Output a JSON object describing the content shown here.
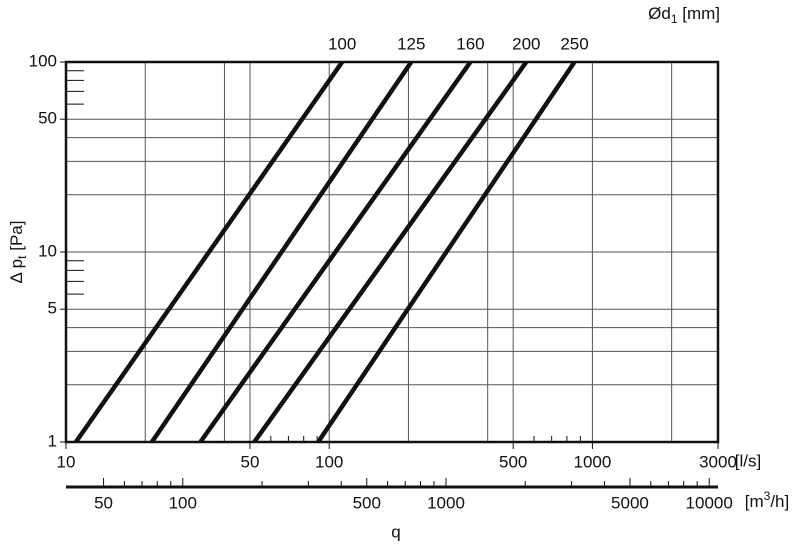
{
  "chart_data": {
    "type": "line",
    "log_x": true,
    "log_y": true,
    "top_label": {
      "pre": "Ød",
      "sub": "1",
      "post": " [mm]"
    },
    "y_label": {
      "pre": "Δ p",
      "sub": "t",
      "post": " [Pa]"
    },
    "x_label": "q",
    "x_unit": "[l/s]",
    "x2_unit": {
      "pre": "[m",
      "sup": "3",
      "post": "/h]"
    },
    "xlim": [
      10,
      3000
    ],
    "xticks": [
      10,
      50,
      100,
      500,
      1000,
      3000
    ],
    "xgrid": [
      20,
      40,
      50,
      100,
      200,
      400,
      500,
      1000,
      2000
    ],
    "xminor": [
      60,
      70,
      80,
      90,
      600,
      700,
      800,
      900
    ],
    "ylim": [
      1,
      100
    ],
    "yticks": [
      1,
      5,
      10,
      50,
      100
    ],
    "ygrid": [
      2,
      3,
      4,
      5,
      10,
      20,
      30,
      40,
      50
    ],
    "yminor": [
      6,
      7,
      8,
      9,
      60,
      70,
      80,
      90
    ],
    "x2lim": [
      36,
      10800
    ],
    "x2ticks": [
      50,
      100,
      500,
      1000,
      5000,
      10000
    ],
    "x2minor": [
      60,
      70,
      80,
      90,
      200,
      300,
      400,
      600,
      700,
      800,
      900,
      2000,
      3000,
      4000,
      6000,
      7000,
      8000,
      9000
    ],
    "color": "#111111",
    "series": [
      {
        "name": "100",
        "x": [
          10.9,
          112
        ],
        "values": [
          1,
          100
        ]
      },
      {
        "name": "125",
        "x": [
          21.2,
          205
        ],
        "values": [
          1,
          100
        ]
      },
      {
        "name": "160",
        "x": [
          32.4,
          344
        ],
        "values": [
          1,
          100
        ]
      },
      {
        "name": "200",
        "x": [
          51.9,
          561
        ],
        "values": [
          1,
          100
        ]
      },
      {
        "name": "250",
        "x": [
          90.8,
          855
        ],
        "values": [
          1,
          100
        ]
      }
    ]
  }
}
